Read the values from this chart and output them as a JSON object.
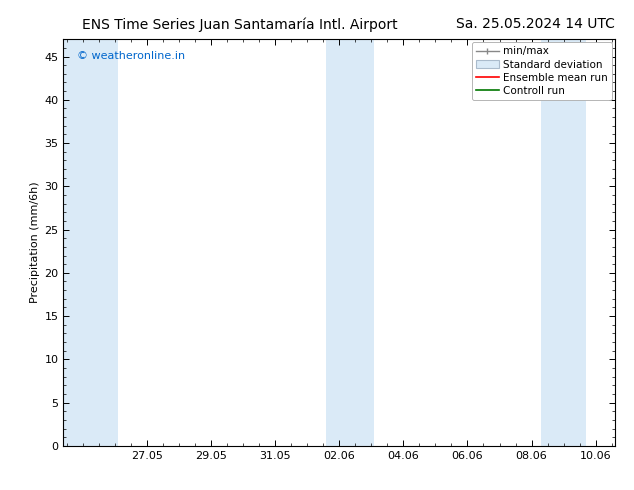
{
  "title_left": "ENS Time Series Juan Santamaría Intl. Airport",
  "title_right": "Sa. 25.05.2024 14 UTC",
  "ylabel": "Precipitation (mm/6h)",
  "watermark": "© weatheronline.in",
  "watermark_color": "#0066cc",
  "ylim": [
    0,
    47
  ],
  "yticks": [
    0,
    5,
    10,
    15,
    20,
    25,
    30,
    35,
    40,
    45
  ],
  "xtick_labels": [
    "27.05",
    "29.05",
    "31.05",
    "02.06",
    "04.06",
    "06.06",
    "08.06",
    "10.06"
  ],
  "background_color": "#ffffff",
  "plot_bg_color": "#ffffff",
  "shaded_color": "#daeaf7",
  "legend_labels": [
    "min/max",
    "Standard deviation",
    "Ensemble mean run",
    "Controll run"
  ],
  "legend_line_colors": [
    "#888888",
    "#aabbcc",
    "#ff0000",
    "#007700"
  ],
  "tick_label_fontsize": 8,
  "axis_label_fontsize": 8,
  "title_fontsize": 10,
  "watermark_fontsize": 8
}
